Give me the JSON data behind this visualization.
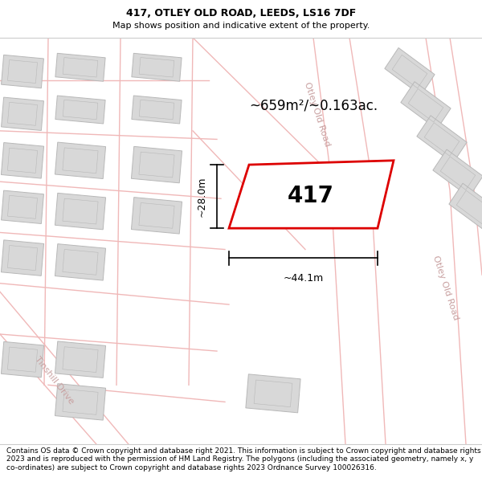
{
  "title_line1": "417, OTLEY OLD ROAD, LEEDS, LS16 7DF",
  "title_line2": "Map shows position and indicative extent of the property.",
  "footer_text": "Contains OS data © Crown copyright and database right 2021. This information is subject to Crown copyright and database rights 2023 and is reproduced with the permission of HM Land Registry. The polygons (including the associated geometry, namely x, y co-ordinates) are subject to Crown copyright and database rights 2023 Ordnance Survey 100026316.",
  "area_text": "~659m²/~0.163ac.",
  "property_label": "417",
  "dim_width": "~44.1m",
  "dim_height": "~28.0m",
  "road_label_upper": "Otley Old Road",
  "road_label_lower": "Otley Old Road",
  "road_label_left": "Tinshill Drive",
  "map_bg": "#ffffff",
  "building_fill": "#d8d8d8",
  "building_edge": "#b8b8b8",
  "road_line_color": "#f0b8b8",
  "road_label_color": "#c8a0a0",
  "prop_fill": "#ffffff",
  "prop_edge": "#dd0000",
  "title_fontsize": 9,
  "subtitle_fontsize": 8,
  "footer_fontsize": 6.5
}
